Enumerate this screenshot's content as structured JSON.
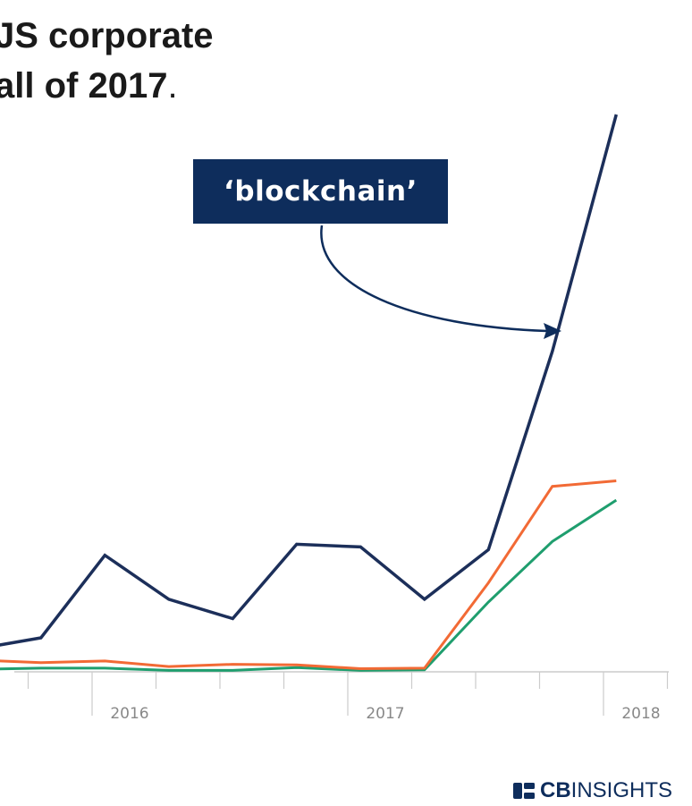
{
  "headline": {
    "line1": "JS corporate",
    "line2_text": "all of 2017",
    "line2_period": "."
  },
  "callout": {
    "text": "‘blockchain’",
    "color": "#0e2d5c"
  },
  "brand": {
    "icon": "cb-insights-logo-icon",
    "strong": "CB",
    "rest": "INSIGHTS"
  },
  "chart_data": {
    "type": "line",
    "x": [
      2015.55,
      2015.8,
      2016.05,
      2016.3,
      2016.55,
      2016.8,
      2017.05,
      2017.3,
      2017.55,
      2017.8,
      2018.05
    ],
    "series": [
      {
        "name": "‘blockchain’",
        "color": "#1c2f5a",
        "values": [
          4.0,
          6.0,
          21.0,
          13.0,
          9.5,
          23.0,
          22.5,
          13.0,
          22.0,
          58.0,
          101.0
        ]
      },
      {
        "color": "#f26a35",
        "values": [
          2.0,
          1.5,
          1.8,
          0.8,
          1.2,
          1.1,
          0.4,
          0.5,
          16.0,
          33.5,
          34.5
        ]
      },
      {
        "color": "#1f9e6e",
        "values": [
          0.3,
          0.5,
          0.5,
          0.1,
          0.1,
          0.6,
          0.1,
          0.2,
          12.5,
          23.5,
          31.0
        ]
      }
    ],
    "xticks": [
      "2016",
      "2017",
      "2018"
    ],
    "xtick_values": [
      2016,
      2017,
      2018
    ],
    "xlim": [
      2015.5,
      2018.25
    ],
    "ylim": [
      0,
      101
    ],
    "grid": false,
    "legend": "none",
    "axis_color": "#cccccc",
    "tick_label_color": "#888888"
  }
}
